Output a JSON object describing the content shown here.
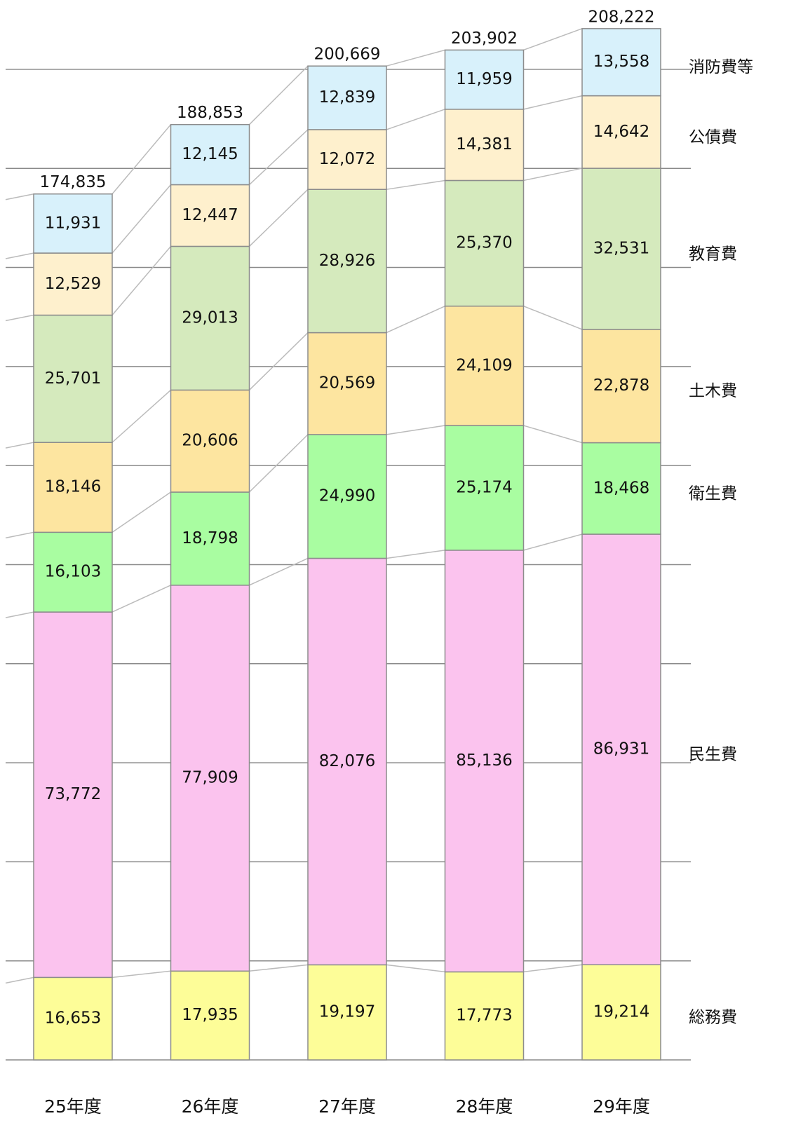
{
  "chart_data": {
    "type": "stacked_bar",
    "categories": [
      "25年度",
      "26年度",
      "27年度",
      "28年度",
      "29年度"
    ],
    "series": [
      {
        "name": "総務費",
        "color": "#fdfd98",
        "values": [
          16653,
          17935,
          19197,
          17773,
          19214
        ]
      },
      {
        "name": "民生費",
        "color": "#fbc3ee",
        "values": [
          73772,
          77909,
          82076,
          85136,
          86931
        ]
      },
      {
        "name": "衛生費",
        "color": "#a9fda1",
        "values": [
          16103,
          18798,
          24990,
          25174,
          18468
        ]
      },
      {
        "name": "土木費",
        "color": "#fde5a0",
        "values": [
          18146,
          20606,
          20569,
          24109,
          22878
        ]
      },
      {
        "name": "教育費",
        "color": "#d5eabd",
        "values": [
          25701,
          29013,
          28926,
          25370,
          32531
        ]
      },
      {
        "name": "公債費",
        "color": "#fef0cd",
        "values": [
          12529,
          12447,
          12072,
          14381,
          14642
        ]
      },
      {
        "name": "消防費等",
        "color": "#d8f1fb",
        "values": [
          11931,
          12145,
          12839,
          11959,
          13558
        ]
      }
    ],
    "totals": [
      174835,
      188853,
      200669,
      203902,
      208222
    ],
    "totals_labels": [
      "174,835",
      "188,853",
      "200,669",
      "203,902",
      "208,222"
    ],
    "ylim": [
      0,
      214000
    ],
    "yticks": [
      0,
      20000,
      40000,
      60000,
      80000,
      100000,
      120000,
      140000,
      160000,
      180000,
      200000
    ],
    "grid": true
  }
}
